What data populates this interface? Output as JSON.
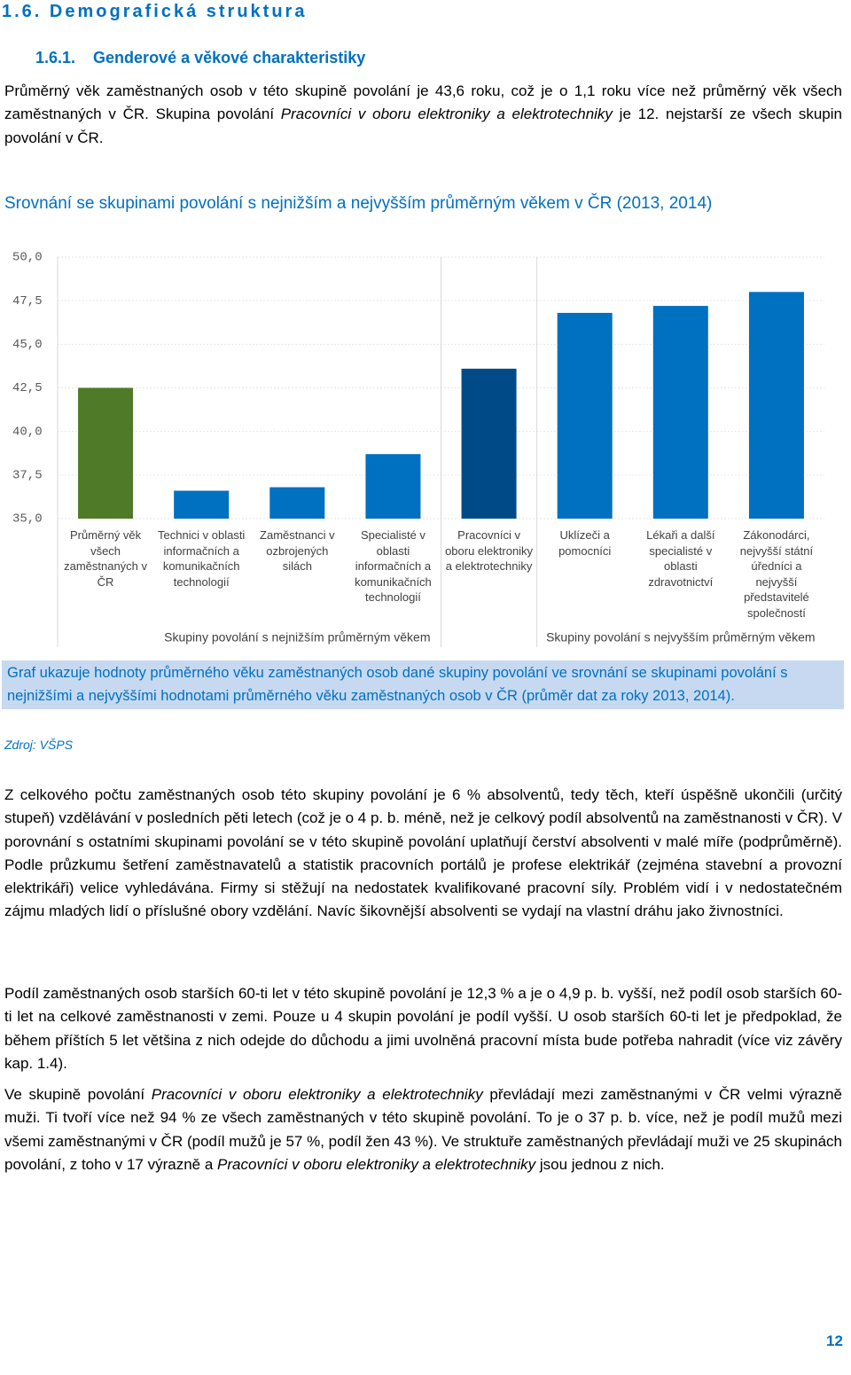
{
  "section": {
    "number": "1.6.",
    "title": "Demografická struktura"
  },
  "subsection": {
    "number": "1.6.1.",
    "title": "Genderové a věkové charakteristiky"
  },
  "intro": [
    "Průměrný věk zaměstnaných osob v této skupině povolání je 43,6 roku, což je o 1,1 roku více než průměrný věk všech zaměstnaných v ČR. Skupina povolání ",
    "Pracovníci v oboru elektroniky a elektrotechniky",
    " je 12. nejstarší ze všech skupin povolání v ČR."
  ],
  "chart_data": {
    "type": "bar",
    "title": "Srovnání se skupinami povolání s nejnižším a nejvyšším průměrným věkem v ČR (2013, 2014)",
    "categories": [
      "Průměrný věk všech zaměstnaných v ČR",
      "Technici v oblasti informačních a komunikačních technologií",
      "Zaměstnanci v ozbrojených silách",
      "Specialisté v oblasti informačních a komunikačních technologií",
      "Pracovníci v oboru elektroniky a elektrotechniky",
      "Uklízeči a pomocníci",
      "Lékaři a další specialisté v oblasti zdravotnictví",
      "Zákonodárci, nejvyšší státní úředníci a nejvyšší představitelé společností"
    ],
    "values": [
      42.5,
      36.6,
      36.8,
      38.7,
      43.6,
      46.8,
      47.2,
      48.0
    ],
    "colors": [
      "#4f7a28",
      "#0070c0",
      "#0070c0",
      "#0070c0",
      "#004b87",
      "#0070c0",
      "#0070c0",
      "#0070c0"
    ],
    "groups": [
      "Skupiny povolání s nejnižším průměrným věkem",
      "Skupiny povolání s nejvyšším průměrným věkem"
    ],
    "ylim": [
      35,
      50
    ],
    "yticks": [
      {
        "value": 35,
        "label": "35,0"
      },
      {
        "value": 37.5,
        "label": "37,5"
      },
      {
        "value": 40,
        "label": "40,0"
      },
      {
        "value": 42.5,
        "label": "42,5"
      },
      {
        "value": 45,
        "label": "45,0"
      },
      {
        "value": 47.5,
        "label": "47,5"
      },
      {
        "value": 50,
        "label": "50,0"
      }
    ],
    "grid": true
  },
  "caption": "Graf ukazuje hodnoty průměrného věku zaměstnaných osob dané skupiny povolání ve srovnání se skupinami povolání s nejnižšími a nejvyššími hodnotami průměrného věku zaměstnaných osob v ČR (průměr dat za roky 2013, 2014).",
  "source": "Zdroj: VŠPS",
  "paragraphs": [
    [
      "Z celkového počtu zaměstnaných osob této skupiny povolání je 6 % absolventů, tedy těch, kteří úspěšně ukončili (určitý stupeň) vzdělávání v posledních pěti letech (což je o 4 p. b. méně, než je celkový podíl absolventů na zaměstnanosti v ČR). V porovnání s ostatními skupinami povolání se v této skupině povolání uplatňují čerství absolventi v malé míře (podprůměrně). Podle průzkumu šetření zaměstnavatelů a statistik pracovních portálů je profese elektrikář (zejména stavební a provozní elektrikáři) velice vyhledávána. Firmy si stěžují na nedostatek kvalifikované pracovní síly. Problém vidí i v nedostatečném zájmu mladých lidí o příslušné obory vzdělání. Navíc šikovnější absolventi se vydají na vlastní dráhu jako živnostníci."
    ],
    [
      "Podíl zaměstnaných osob starších 60-ti let v této skupině povolání je 12,3 % a je o 4,9 p. b. vyšší, než podíl osob starších 60-ti let na celkové zaměstnanosti v zemi. Pouze u 4 skupin povolání je podíl vyšší. U osob starších 60-ti let je předpoklad, že během příštích 5 let většina z nich odejde do důchodu a jimi uvolněná pracovní místa bude potřeba nahradit (více viz závěry kap. 1.4)."
    ],
    [
      "Ve skupině povolání ",
      "Pracovníci v oboru elektroniky a elektrotechniky",
      " převládají mezi zaměstnanými v ČR velmi výrazně muži. Ti tvoří více než 94 % ze všech zaměstnaných v této skupině povolání. To je o 37 p. b. více, než je podíl mužů mezi všemi zaměstnanými v ČR (podíl mužů je 57 %, podíl žen 43 %). Ve struktuře zaměstnaných převládají muži ve 25 skupinách povolání, z toho v 17 výrazně a ",
      "Pracovníci v oboru elektroniky a elektrotechniky",
      " jsou jednou z nich."
    ]
  ],
  "page_number": "12"
}
